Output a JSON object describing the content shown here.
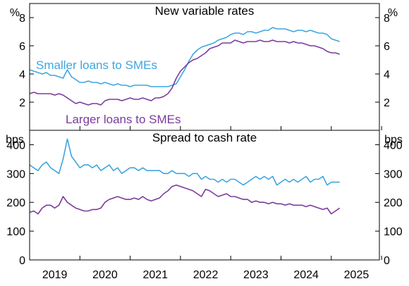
{
  "chart_data": {
    "type": "line",
    "x_ticks": [
      "2019",
      "2020",
      "2021",
      "2022",
      "2023",
      "2024",
      "2025"
    ],
    "colors": {
      "smaller": "#3ea6df",
      "larger": "#7a3b9c"
    },
    "panels": [
      {
        "title": "New variable rates",
        "unit": "%",
        "ylim": [
          0,
          9
        ],
        "yticks": [
          2,
          4,
          6,
          8
        ],
        "annotations": [
          {
            "series": "smaller",
            "text": "Smaller loans to SMEs"
          },
          {
            "series": "larger",
            "text": "Larger loans to SMEs"
          }
        ],
        "series": [
          {
            "key": "smaller",
            "start": 2019.0,
            "step": 0.0833333,
            "values": [
              4.3,
              4.2,
              4.1,
              4.0,
              4.1,
              3.9,
              3.9,
              3.8,
              3.7,
              4.3,
              3.8,
              3.6,
              3.4,
              3.4,
              3.5,
              3.4,
              3.4,
              3.3,
              3.4,
              3.3,
              3.2,
              3.3,
              3.2,
              3.2,
              3.1,
              3.2,
              3.2,
              3.2,
              3.2,
              3.1,
              3.1,
              3.1,
              3.1,
              3.1,
              3.2,
              3.3,
              3.8,
              4.3,
              4.9,
              5.4,
              5.7,
              5.9,
              6.0,
              6.1,
              6.2,
              6.4,
              6.5,
              6.6,
              6.8,
              6.9,
              6.9,
              6.8,
              7.0,
              7.0,
              6.9,
              7.0,
              7.1,
              7.1,
              7.3,
              7.2,
              7.2,
              7.2,
              7.1,
              7.0,
              7.1,
              7.1,
              7.0,
              7.1,
              7.0,
              6.9,
              6.9,
              6.8,
              6.5,
              6.4,
              6.3
            ]
          },
          {
            "key": "larger",
            "start": 2019.0,
            "step": 0.0833333,
            "values": [
              2.6,
              2.7,
              2.6,
              2.6,
              2.6,
              2.6,
              2.5,
              2.6,
              2.5,
              2.3,
              2.1,
              1.9,
              2.0,
              1.9,
              1.8,
              1.9,
              1.9,
              1.8,
              2.1,
              2.2,
              2.2,
              2.2,
              2.1,
              2.2,
              2.3,
              2.2,
              2.2,
              2.3,
              2.2,
              2.1,
              2.3,
              2.3,
              2.4,
              2.6,
              3.0,
              3.7,
              4.2,
              4.5,
              4.8,
              5.0,
              5.1,
              5.3,
              5.5,
              5.8,
              5.9,
              6.0,
              6.2,
              6.2,
              6.2,
              6.4,
              6.3,
              6.2,
              6.3,
              6.3,
              6.3,
              6.4,
              6.3,
              6.3,
              6.4,
              6.3,
              6.3,
              6.3,
              6.2,
              6.3,
              6.2,
              6.2,
              6.1,
              6.0,
              6.0,
              5.9,
              5.8,
              5.6,
              5.5,
              5.5,
              5.4
            ]
          }
        ]
      },
      {
        "title": "Spread to cash rate",
        "unit": "bps",
        "ylim": [
          0,
          450
        ],
        "yticks": [
          0,
          100,
          200,
          300,
          400
        ],
        "annotations": [],
        "series": [
          {
            "key": "smaller",
            "start": 2019.0,
            "step": 0.0833333,
            "values": [
              330,
              320,
              310,
              330,
              340,
              320,
              310,
              300,
              350,
              420,
              360,
              340,
              320,
              330,
              330,
              320,
              330,
              310,
              320,
              330,
              310,
              320,
              300,
              310,
              320,
              320,
              310,
              320,
              310,
              310,
              310,
              310,
              300,
              300,
              310,
              300,
              300,
              300,
              290,
              300,
              300,
              280,
              290,
              280,
              280,
              270,
              280,
              270,
              280,
              280,
              270,
              260,
              270,
              280,
              290,
              280,
              290,
              280,
              290,
              260,
              270,
              280,
              270,
              280,
              270,
              280,
              290,
              270,
              280,
              280,
              290,
              260,
              270,
              270,
              270
            ]
          },
          {
            "key": "larger",
            "start": 2019.0,
            "step": 0.0833333,
            "values": [
              165,
              170,
              160,
              180,
              190,
              190,
              180,
              190,
              220,
              200,
              190,
              180,
              175,
              170,
              170,
              175,
              175,
              180,
              200,
              210,
              215,
              220,
              215,
              210,
              210,
              215,
              210,
              220,
              210,
              205,
              210,
              215,
              230,
              240,
              255,
              260,
              255,
              250,
              245,
              240,
              230,
              220,
              245,
              240,
              230,
              220,
              225,
              230,
              220,
              220,
              215,
              210,
              210,
              200,
              205,
              200,
              200,
              195,
              200,
              195,
              195,
              190,
              195,
              190,
              190,
              190,
              185,
              190,
              185,
              180,
              175,
              180,
              160,
              170,
              180
            ]
          }
        ]
      }
    ]
  }
}
